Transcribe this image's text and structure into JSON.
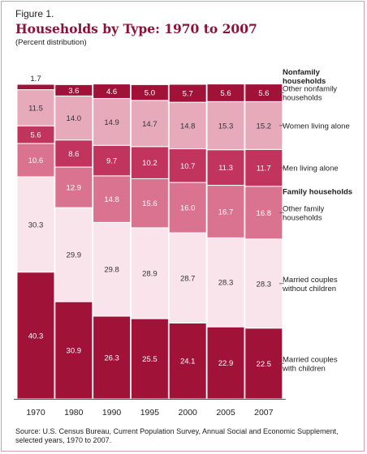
{
  "figure": {
    "label": "Figure 1.",
    "title": "Households by Type: 1970 to 2007",
    "subtitle": "(Percent distribution)",
    "source": "Source: U.S. Census Bureau, Current Population Survey, Annual Social and Economic Supplement, selected years, 1970 to 2007."
  },
  "chart_data": {
    "type": "bar",
    "stacked": true,
    "ylim": [
      0,
      100
    ],
    "categories": [
      "1970",
      "1980",
      "1990",
      "1995",
      "2000",
      "2005",
      "2007"
    ],
    "series": [
      {
        "name": "Married couples with children",
        "color": "#a11238",
        "text_color": "#ffffff",
        "values": [
          40.3,
          30.9,
          26.3,
          25.5,
          24.1,
          22.9,
          22.5
        ]
      },
      {
        "name": "Married couples without children",
        "color": "#f8e4ea",
        "text_color": "#333333",
        "values": [
          30.3,
          29.9,
          29.8,
          28.9,
          28.7,
          28.3,
          28.3
        ]
      },
      {
        "name": "Other family households",
        "color": "#d9738f",
        "text_color": "#ffffff",
        "values": [
          10.6,
          12.9,
          14.8,
          15.6,
          16.0,
          16.7,
          16.8
        ]
      },
      {
        "name": "Men living alone",
        "color": "#c0345d",
        "text_color": "#ffffff",
        "values": [
          5.6,
          8.6,
          9.7,
          10.2,
          10.7,
          11.3,
          11.7
        ]
      },
      {
        "name": "Women living alone",
        "color": "#e6aabb",
        "text_color": "#333333",
        "values": [
          11.5,
          14.0,
          14.9,
          14.7,
          14.8,
          15.3,
          15.2
        ]
      },
      {
        "name": "Other nonfamily households",
        "color": "#a11238",
        "text_color": "#ffffff",
        "values": [
          1.7,
          3.6,
          4.6,
          5.0,
          5.7,
          5.6,
          5.6
        ]
      }
    ],
    "legend_groups": [
      {
        "heading": "Nonfamily households",
        "items": [
          "Other nonfamily households",
          "Women living alone",
          "Men living alone"
        ]
      },
      {
        "heading": "Family households",
        "items": [
          "Other family households",
          "Married couples without children",
          "Married couples with children"
        ]
      }
    ]
  }
}
